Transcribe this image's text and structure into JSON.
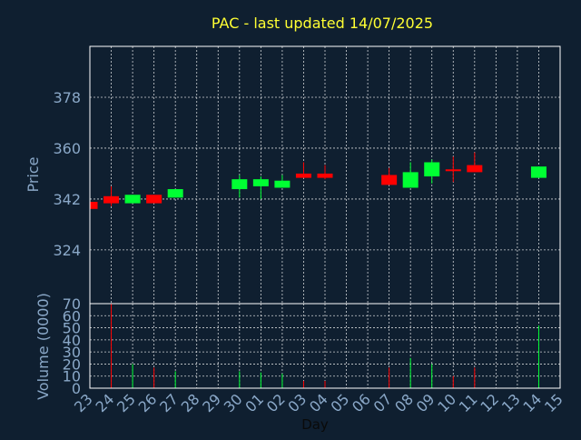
{
  "colors": {
    "background": "#0f1f30",
    "title": "#ffff33",
    "axis_text": "#8aa8c8",
    "frame": "#ffffff",
    "grid": "#ffffff",
    "up": "#00ff33",
    "down": "#ff0000"
  },
  "chart_data": {
    "type": "candlestick",
    "title": "PAC - last updated 14/07/2025",
    "xlabel": "Day",
    "price_panel": {
      "ylabel": "Price",
      "ylim": [
        305,
        396
      ],
      "yticks": [
        324,
        342,
        360,
        378
      ]
    },
    "volume_panel": {
      "ylabel": "Volume (0000)",
      "ylim": [
        0,
        70
      ],
      "yticks": [
        0,
        10,
        20,
        30,
        40,
        50,
        60,
        70
      ]
    },
    "x_ticks": [
      "23",
      "24",
      "25",
      "26",
      "27",
      "28",
      "29",
      "30",
      "01",
      "02",
      "03",
      "04",
      "05",
      "06",
      "07",
      "08",
      "09",
      "10",
      "11",
      "12",
      "13",
      "14",
      "15"
    ],
    "grid": true,
    "candles": [
      {
        "x": 0,
        "open": 341.0,
        "close": 338.5,
        "high": 341.0,
        "low": 338.5,
        "volume": 0
      },
      {
        "x": 1,
        "open": 343.0,
        "close": 340.5,
        "high": 346.5,
        "low": 339.5,
        "volume": 70
      },
      {
        "x": 2,
        "open": 340.5,
        "close": 343.5,
        "high": 343.5,
        "low": 340.5,
        "volume": 20
      },
      {
        "x": 3,
        "open": 343.5,
        "close": 340.5,
        "high": 343.5,
        "low": 340.5,
        "volume": 17
      },
      {
        "x": 4,
        "open": 342.5,
        "close": 345.5,
        "high": 345.5,
        "low": 342.5,
        "volume": 14
      },
      {
        "x": 7,
        "open": 345.5,
        "close": 349.0,
        "high": 350.5,
        "low": 342.5,
        "volume": 14
      },
      {
        "x": 8,
        "open": 346.5,
        "close": 349.0,
        "high": 350.0,
        "low": 342.0,
        "volume": 13
      },
      {
        "x": 9,
        "open": 346.0,
        "close": 348.5,
        "high": 350.5,
        "low": 346.0,
        "volume": 12
      },
      {
        "x": 10,
        "open": 351.0,
        "close": 349.5,
        "high": 355.0,
        "low": 349.5,
        "volume": 6
      },
      {
        "x": 11,
        "open": 351.0,
        "close": 349.5,
        "high": 354.0,
        "low": 349.0,
        "volume": 6
      },
      {
        "x": 14,
        "open": 350.5,
        "close": 347.0,
        "high": 353.0,
        "low": 347.0,
        "volume": 17
      },
      {
        "x": 15,
        "open": 346.0,
        "close": 351.5,
        "high": 355.0,
        "low": 346.0,
        "volume": 25
      },
      {
        "x": 16,
        "open": 350.0,
        "close": 355.0,
        "high": 356.0,
        "low": 347.5,
        "volume": 20
      },
      {
        "x": 17,
        "open": 352.5,
        "close": 352.0,
        "high": 357.0,
        "low": 348.0,
        "volume": 10
      },
      {
        "x": 18,
        "open": 354.0,
        "close": 351.5,
        "high": 358.5,
        "low": 351.5,
        "volume": 17
      },
      {
        "x": 21,
        "open": 349.5,
        "close": 353.5,
        "high": 353.5,
        "low": 349.5,
        "volume": 52
      }
    ]
  }
}
